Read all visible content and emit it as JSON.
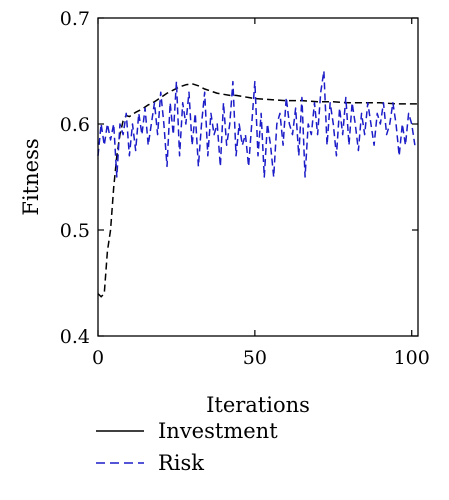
{
  "chart_data": {
    "type": "line",
    "title": "",
    "xlabel": "Iterations",
    "ylabel": "Fitness",
    "xlim": [
      0,
      102
    ],
    "ylim": [
      0.4,
      0.7
    ],
    "xticks": [
      0,
      50,
      100
    ],
    "xtick_labels": [
      "0",
      "50",
      "100"
    ],
    "yticks": [
      0.4,
      0.5,
      0.6,
      0.7
    ],
    "ytick_labels": [
      "0.4",
      "0.5",
      "0.6",
      "0.7"
    ],
    "grid": false,
    "legend_position": "below",
    "series": [
      {
        "name": "Investment",
        "color": "#000000",
        "dash": "dashed",
        "x": [
          0,
          1,
          2,
          3,
          4,
          5,
          6,
          7,
          8,
          9,
          10,
          12,
          14,
          16,
          18,
          20,
          22,
          24,
          26,
          28,
          30,
          32,
          34,
          36,
          38,
          40,
          42,
          44,
          46,
          48,
          50,
          55,
          60,
          65,
          70,
          75,
          80,
          85,
          90,
          95,
          100,
          102
        ],
        "y": [
          0.44,
          0.437,
          0.44,
          0.48,
          0.5,
          0.54,
          0.57,
          0.59,
          0.603,
          0.608,
          0.607,
          0.611,
          0.614,
          0.618,
          0.621,
          0.625,
          0.629,
          0.632,
          0.635,
          0.637,
          0.638,
          0.636,
          0.633,
          0.631,
          0.629,
          0.628,
          0.627,
          0.627,
          0.626,
          0.625,
          0.624,
          0.623,
          0.622,
          0.622,
          0.621,
          0.621,
          0.62,
          0.62,
          0.62,
          0.619,
          0.619,
          0.619
        ]
      },
      {
        "name": "Risk",
        "color": "#1c1cc8",
        "dash": "dashed",
        "x": [
          0,
          1,
          2,
          3,
          4,
          5,
          6,
          7,
          8,
          9,
          10,
          11,
          12,
          13,
          14,
          15,
          16,
          17,
          18,
          19,
          20,
          21,
          22,
          23,
          24,
          25,
          26,
          27,
          28,
          29,
          30,
          31,
          32,
          33,
          34,
          35,
          36,
          37,
          38,
          39,
          40,
          41,
          42,
          43,
          44,
          45,
          46,
          47,
          48,
          49,
          50,
          51,
          52,
          53,
          54,
          55,
          56,
          57,
          58,
          59,
          60,
          61,
          62,
          63,
          64,
          65,
          66,
          67,
          68,
          69,
          70,
          71,
          72,
          73,
          74,
          75,
          76,
          77,
          78,
          79,
          80,
          81,
          82,
          83,
          84,
          85,
          86,
          87,
          88,
          89,
          90,
          91,
          92,
          93,
          94,
          95,
          96,
          97,
          98,
          99,
          100,
          101
        ],
        "y": [
          0.57,
          0.6,
          0.58,
          0.6,
          0.585,
          0.6,
          0.55,
          0.6,
          0.59,
          0.61,
          0.57,
          0.6,
          0.575,
          0.61,
          0.59,
          0.615,
          0.58,
          0.6,
          0.62,
          0.59,
          0.63,
          0.6,
          0.56,
          0.62,
          0.59,
          0.64,
          0.57,
          0.62,
          0.6,
          0.63,
          0.58,
          0.61,
          0.56,
          0.6,
          0.63,
          0.57,
          0.61,
          0.59,
          0.6,
          0.56,
          0.62,
          0.58,
          0.6,
          0.64,
          0.57,
          0.6,
          0.58,
          0.59,
          0.56,
          0.6,
          0.64,
          0.57,
          0.61,
          0.55,
          0.6,
          0.58,
          0.55,
          0.6,
          0.61,
          0.58,
          0.625,
          0.6,
          0.59,
          0.615,
          0.57,
          0.625,
          0.55,
          0.6,
          0.59,
          0.62,
          0.59,
          0.63,
          0.65,
          0.58,
          0.62,
          0.6,
          0.57,
          0.615,
          0.59,
          0.625,
          0.58,
          0.62,
          0.6,
          0.575,
          0.61,
          0.59,
          0.62,
          0.6,
          0.58,
          0.61,
          0.6,
          0.62,
          0.59,
          0.6,
          0.62,
          0.6,
          0.57,
          0.6,
          0.58,
          0.61,
          0.6,
          0.58
        ]
      }
    ]
  }
}
